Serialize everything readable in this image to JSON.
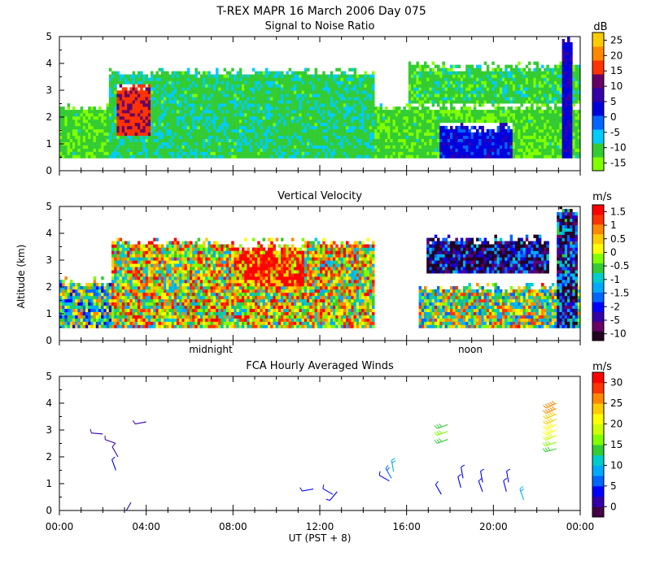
{
  "figure": {
    "title": "T-REX  MAPR 16 March 2006 Day 075",
    "xlabel": "UT  (PST + 8)"
  },
  "chart_data": [
    {
      "type": "heatmap",
      "title": "Signal to Noise Ratio",
      "xlim": [
        0,
        24
      ],
      "ylim": [
        0,
        5
      ],
      "yticks": [
        "0",
        "1",
        "2",
        "3",
        "4",
        "5"
      ],
      "colorbar": {
        "unit": "dB",
        "colors": [
          "#80ff00",
          "#33cc33",
          "#00ccff",
          "#0066ff",
          "#0000dd",
          "#3300aa",
          "#660066",
          "#ff3300",
          "#ff8800",
          "#ffcc00"
        ],
        "labels": [
          "-15",
          "-10",
          "-5",
          "0",
          "5",
          "10",
          "15",
          "20",
          "25"
        ]
      },
      "features": [
        {
          "name": "background-echo",
          "x": [
            0,
            24
          ],
          "y": [
            0.4,
            2.5
          ],
          "value_db": -11
        },
        {
          "name": "cloud-layer",
          "x": [
            2.2,
            14.5
          ],
          "y": [
            0.4,
            3.8
          ],
          "value_db": -9
        },
        {
          "name": "strong-echo-core",
          "x": [
            2.6,
            4.2
          ],
          "y": [
            1.2,
            3.2
          ],
          "value_db": 17
        },
        {
          "name": "upper-layer-late",
          "x": [
            16,
            24
          ],
          "y": [
            2.4,
            4.0
          ],
          "value_db": -10
        },
        {
          "name": "low-layer-evening",
          "x": [
            17.4,
            20.8
          ],
          "y": [
            0.4,
            1.7
          ],
          "value_db": 4
        },
        {
          "name": "vertical-spike",
          "x": [
            23.1,
            23.6
          ],
          "y": [
            0.4,
            5
          ],
          "value_db": 6
        }
      ]
    },
    {
      "type": "heatmap",
      "title": "Vertical Velocity",
      "ylabel": "Altitude (km)",
      "xlim": [
        0,
        24
      ],
      "ylim": [
        0,
        5
      ],
      "yticks": [
        "0",
        "1",
        "2",
        "3",
        "4",
        "5"
      ],
      "day_labels": [
        {
          "label": "midnight",
          "x": 8
        },
        {
          "label": "noon",
          "x": 20
        }
      ],
      "colorbar": {
        "unit": "m/s",
        "colors": [
          "#220022",
          "#660066",
          "#3300aa",
          "#0000ff",
          "#0066ff",
          "#00aaff",
          "#00cccc",
          "#33cc33",
          "#80ff00",
          "#ffff00",
          "#ffcc00",
          "#ff8800",
          "#ff3300",
          "#ff0000"
        ],
        "labels": [
          "-10",
          "-5",
          "-2",
          "-1.5",
          "-1",
          "-0.5",
          "0",
          "0.5",
          "1",
          "1.5"
        ]
      },
      "features": [
        {
          "name": "low-layer-early",
          "x": [
            0,
            2.4
          ],
          "y": [
            0.4,
            2.3
          ],
          "value_ms": 0
        },
        {
          "name": "convective-region",
          "x": [
            2.4,
            14.5
          ],
          "y": [
            0.4,
            3.8
          ],
          "value_ms": 0.6
        },
        {
          "name": "updraft-core",
          "x": [
            8.0,
            11.2
          ],
          "y": [
            2.0,
            3.6
          ],
          "value_ms": 1.6
        },
        {
          "name": "upper-downdraft-layer",
          "x": [
            16.8,
            22.5
          ],
          "y": [
            2.4,
            3.9
          ],
          "value_ms": -1.8
        },
        {
          "name": "low-layer-late",
          "x": [
            16.5,
            24
          ],
          "y": [
            0.4,
            2.1
          ],
          "value_ms": 0.3
        },
        {
          "name": "vertical-spike",
          "x": [
            22.9,
            23.8
          ],
          "y": [
            0.4,
            5
          ],
          "value_ms": -1.5
        }
      ]
    },
    {
      "type": "wind-barbs",
      "title": "FCA Hourly Averaged Winds",
      "xlim": [
        0,
        24
      ],
      "ylim": [
        0,
        5
      ],
      "yticks": [
        "0",
        "1",
        "2",
        "3",
        "4",
        "5"
      ],
      "xticks": [
        "00:00",
        "04:00",
        "08:00",
        "12:00",
        "16:00",
        "20:00",
        "00:00"
      ],
      "colorbar": {
        "unit": "m/s",
        "colors": [
          "#440044",
          "#3300aa",
          "#0000ff",
          "#0066ff",
          "#00aaff",
          "#00cccc",
          "#33cc33",
          "#80ff00",
          "#ccff00",
          "#ffff00",
          "#ffcc00",
          "#ff8800",
          "#ff3300",
          "#ff0000"
        ],
        "labels": [
          "0",
          "5",
          "10",
          "15",
          "20",
          "25",
          "30"
        ]
      },
      "barbs": [
        {
          "t": 2.0,
          "z": 2.85,
          "speed": 4,
          "dir": 275
        },
        {
          "t": 2.6,
          "z": 2.5,
          "speed": 4,
          "dir": 290
        },
        {
          "t": 2.7,
          "z": 2.0,
          "speed": 4,
          "dir": 330
        },
        {
          "t": 2.6,
          "z": 1.5,
          "speed": 5,
          "dir": 340
        },
        {
          "t": 4.0,
          "z": 3.3,
          "speed": 4,
          "dir": 260
        },
        {
          "t": 3.3,
          "z": 0.3,
          "speed": 4,
          "dir": 210
        },
        {
          "t": 11.7,
          "z": 0.8,
          "speed": 5,
          "dir": 260
        },
        {
          "t": 12.6,
          "z": 0.6,
          "speed": 6,
          "dir": 300
        },
        {
          "t": 12.8,
          "z": 0.7,
          "speed": 5,
          "dir": 220
        },
        {
          "t": 15.2,
          "z": 1.1,
          "speed": 6,
          "dir": 300
        },
        {
          "t": 15.4,
          "z": 1.45,
          "speed": 10,
          "dir": 350
        },
        {
          "t": 15.3,
          "z": 1.2,
          "speed": 8,
          "dir": 330
        },
        {
          "t": 17.9,
          "z": 3.2,
          "speed": 14,
          "dir": 250
        },
        {
          "t": 17.9,
          "z": 2.95,
          "speed": 15,
          "dir": 250
        },
        {
          "t": 17.9,
          "z": 2.65,
          "speed": 14,
          "dir": 250
        },
        {
          "t": 17.6,
          "z": 0.6,
          "speed": 6,
          "dir": 330
        },
        {
          "t": 18.5,
          "z": 0.85,
          "speed": 6,
          "dir": 345
        },
        {
          "t": 18.6,
          "z": 1.2,
          "speed": 6,
          "dir": 350
        },
        {
          "t": 19.5,
          "z": 0.7,
          "speed": 6,
          "dir": 340
        },
        {
          "t": 19.5,
          "z": 1.05,
          "speed": 5,
          "dir": 350
        },
        {
          "t": 20.6,
          "z": 0.7,
          "speed": 6,
          "dir": 345
        },
        {
          "t": 20.7,
          "z": 1.05,
          "speed": 6,
          "dir": 350
        },
        {
          "t": 21.4,
          "z": 0.4,
          "speed": 9,
          "dir": 340
        },
        {
          "t": 22.9,
          "z": 4.0,
          "speed": 24,
          "dir": 245
        },
        {
          "t": 22.9,
          "z": 3.8,
          "speed": 24,
          "dir": 245
        },
        {
          "t": 22.9,
          "z": 3.6,
          "speed": 23,
          "dir": 245
        },
        {
          "t": 22.9,
          "z": 3.4,
          "speed": 22,
          "dir": 245
        },
        {
          "t": 22.9,
          "z": 3.2,
          "speed": 21,
          "dir": 245
        },
        {
          "t": 22.9,
          "z": 3.0,
          "speed": 20,
          "dir": 245
        },
        {
          "t": 22.9,
          "z": 2.8,
          "speed": 18,
          "dir": 245
        },
        {
          "t": 22.9,
          "z": 2.55,
          "speed": 16,
          "dir": 250
        },
        {
          "t": 22.9,
          "z": 2.3,
          "speed": 14,
          "dir": 255
        }
      ]
    }
  ]
}
